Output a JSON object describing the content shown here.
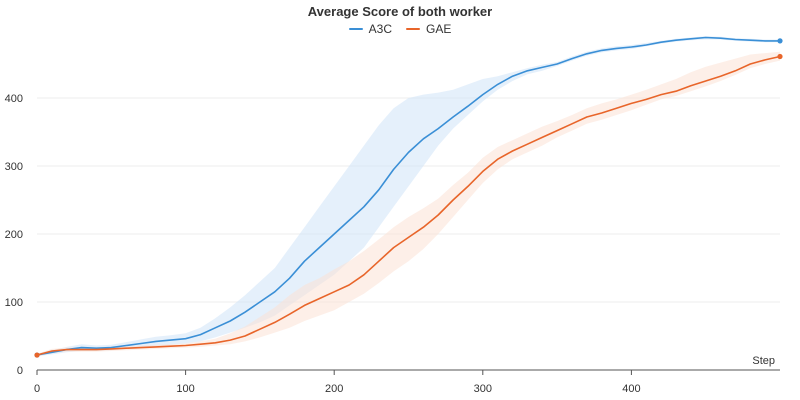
{
  "chart_data": {
    "type": "line",
    "title": "Average Score of both worker",
    "xlabel": "Step",
    "ylabel": "",
    "xlim": [
      0,
      500
    ],
    "ylim": [
      0,
      500
    ],
    "x_ticks": [
      0,
      100,
      200,
      300,
      400
    ],
    "y_ticks": [
      0,
      100,
      200,
      300,
      400
    ],
    "grid": "horizontal",
    "legend_position": "top-center",
    "series": [
      {
        "name": "A3C",
        "color": "#3a8fd6",
        "band_color": "#cfe3f7",
        "x": [
          0,
          10,
          20,
          30,
          40,
          50,
          60,
          70,
          80,
          90,
          100,
          110,
          120,
          130,
          140,
          150,
          160,
          170,
          180,
          190,
          200,
          210,
          220,
          230,
          240,
          250,
          260,
          270,
          280,
          290,
          300,
          310,
          320,
          330,
          340,
          350,
          360,
          370,
          380,
          390,
          400,
          410,
          420,
          430,
          440,
          450,
          460,
          470,
          480,
          490,
          500
        ],
        "y": [
          22,
          26,
          30,
          33,
          32,
          33,
          36,
          39,
          42,
          44,
          46,
          52,
          62,
          72,
          85,
          100,
          115,
          135,
          160,
          180,
          200,
          220,
          240,
          265,
          295,
          320,
          340,
          355,
          372,
          388,
          405,
          420,
          432,
          440,
          445,
          450,
          458,
          465,
          470,
          473,
          475,
          478,
          482,
          485,
          487,
          489,
          488,
          486,
          485,
          484,
          484
        ],
        "lower": [
          20,
          23,
          26,
          28,
          28,
          29,
          31,
          33,
          35,
          37,
          39,
          42,
          48,
          55,
          62,
          70,
          80,
          95,
          110,
          125,
          140,
          160,
          180,
          210,
          240,
          270,
          300,
          330,
          355,
          375,
          395,
          412,
          425,
          435,
          440,
          447,
          455,
          462,
          467,
          470,
          472,
          476,
          480,
          483,
          485,
          486,
          486,
          484,
          483,
          482,
          482
        ],
        "upper": [
          24,
          29,
          34,
          38,
          36,
          37,
          41,
          45,
          49,
          51,
          54,
          62,
          76,
          92,
          110,
          130,
          150,
          180,
          210,
          240,
          270,
          300,
          330,
          360,
          385,
          400,
          405,
          408,
          412,
          420,
          428,
          432,
          438,
          444,
          449,
          453,
          461,
          468,
          473,
          476,
          478,
          481,
          484,
          487,
          489,
          491,
          490,
          488,
          487,
          486,
          486
        ]
      },
      {
        "name": "GAE",
        "color": "#e8652a",
        "band_color": "#fbe1d6",
        "x": [
          0,
          10,
          20,
          30,
          40,
          50,
          60,
          70,
          80,
          90,
          100,
          110,
          120,
          130,
          140,
          150,
          160,
          170,
          180,
          190,
          200,
          210,
          220,
          230,
          240,
          250,
          260,
          270,
          280,
          290,
          300,
          310,
          320,
          330,
          340,
          350,
          360,
          370,
          380,
          390,
          400,
          410,
          420,
          430,
          440,
          450,
          460,
          470,
          480,
          490,
          500
        ],
        "y": [
          22,
          28,
          30,
          30,
          30,
          31,
          32,
          33,
          34,
          35,
          36,
          38,
          40,
          44,
          50,
          60,
          70,
          82,
          95,
          105,
          115,
          125,
          140,
          160,
          180,
          195,
          210,
          228,
          250,
          270,
          292,
          310,
          322,
          332,
          342,
          352,
          362,
          372,
          378,
          385,
          392,
          398,
          405,
          410,
          418,
          425,
          432,
          440,
          450,
          456,
          461
        ],
        "lower": [
          20,
          25,
          27,
          27,
          27,
          28,
          29,
          30,
          31,
          32,
          33,
          34,
          36,
          38,
          42,
          48,
          55,
          62,
          72,
          80,
          88,
          100,
          112,
          128,
          145,
          160,
          178,
          200,
          225,
          250,
          275,
          295,
          310,
          320,
          330,
          342,
          352,
          362,
          368,
          375,
          382,
          390,
          398,
          403,
          410,
          417,
          425,
          434,
          444,
          450,
          455
        ],
        "upper": [
          24,
          31,
          33,
          33,
          33,
          34,
          35,
          36,
          37,
          38,
          39,
          42,
          46,
          54,
          64,
          78,
          92,
          110,
          125,
          135,
          148,
          160,
          175,
          192,
          210,
          225,
          238,
          252,
          272,
          290,
          312,
          328,
          338,
          348,
          358,
          366,
          375,
          385,
          392,
          398,
          405,
          412,
          420,
          428,
          438,
          446,
          452,
          458,
          464,
          466,
          468
        ]
      }
    ]
  }
}
